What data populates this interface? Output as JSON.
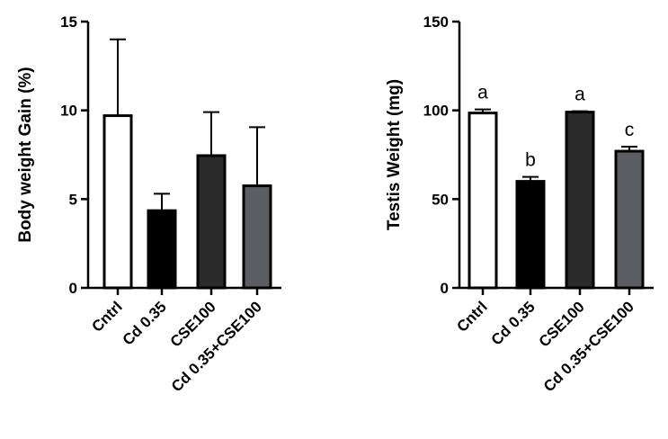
{
  "chart_data": [
    {
      "type": "bar",
      "ylabel": "Body weight Gain (%)",
      "xlabel": "",
      "ylim": [
        0,
        15
      ],
      "yticks": [
        "0",
        "5",
        "10",
        "15"
      ],
      "categories": [
        "Cntrl",
        "Cd 0.35",
        "CSE100",
        "Cd 0.35+CSE100"
      ],
      "values": [
        9.7,
        4.35,
        7.45,
        5.75
      ],
      "error_upper": [
        4.3,
        0.95,
        2.45,
        3.3
      ],
      "bar_colors": [
        "#ffffff",
        "#000000",
        "#2b2b2b",
        "#5a5d62"
      ],
      "significance_letters": [],
      "grid": false
    },
    {
      "type": "bar",
      "ylabel": "Testis Weight (mg)",
      "xlabel": "",
      "ylim": [
        0,
        150
      ],
      "yticks": [
        "0",
        "50",
        "100",
        "150"
      ],
      "categories": [
        "Cntrl",
        "Cd 0.35",
        "CSE100",
        "Cd 0.35+CSE100"
      ],
      "values": [
        98.5,
        60,
        99,
        77
      ],
      "error_upper": [
        2,
        2.5,
        0.5,
        2.5
      ],
      "bar_colors": [
        "#ffffff",
        "#000000",
        "#2b2b2b",
        "#5a5d62"
      ],
      "significance_letters": [
        "a",
        "b",
        "a",
        "c"
      ],
      "grid": false
    }
  ]
}
